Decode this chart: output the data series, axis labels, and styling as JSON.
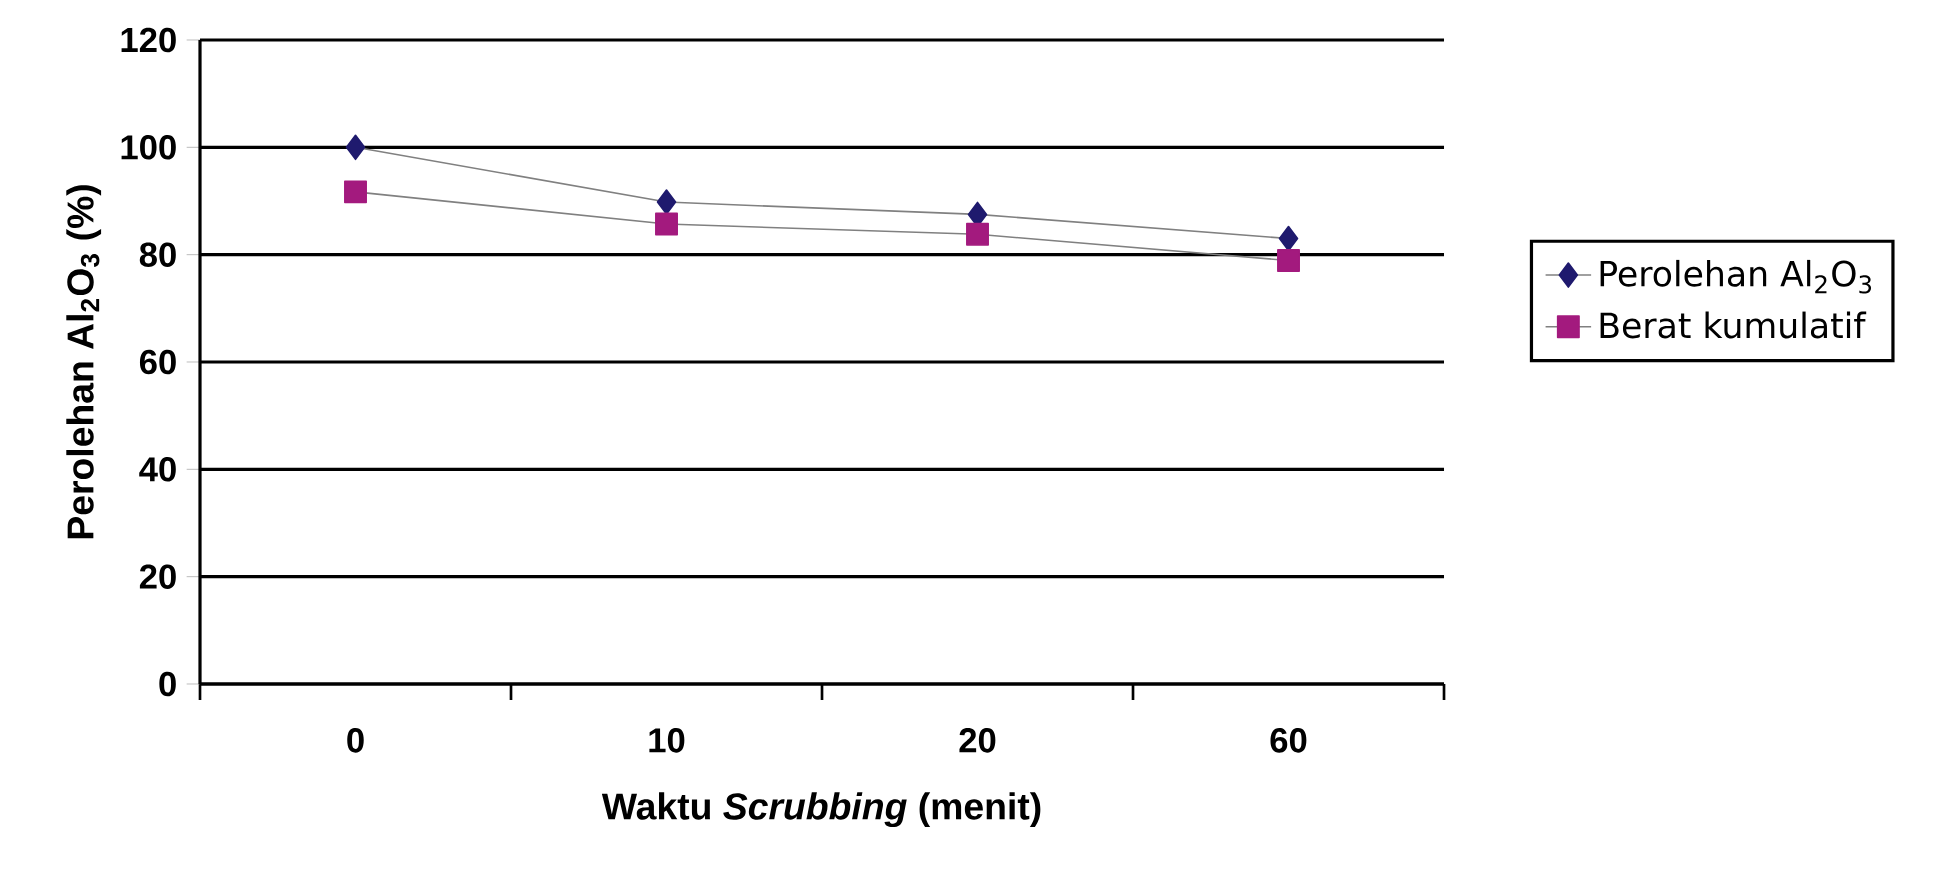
{
  "chart_data": {
    "type": "line",
    "xlabel": "Waktu *Scrubbing* (menit)",
    "ylabel": "Perolehan Al$_{2}$O$_{3}$ (%)",
    "categories": [
      "0",
      "10",
      "20",
      "60"
    ],
    "series": [
      {
        "name": "Perolehan Al$_{2}$O$_{3}$",
        "color": "#1f1a6e",
        "marker": "diamond",
        "values": [
          100,
          89.8,
          87.5,
          83
        ]
      },
      {
        "name": "Berat kumulatif",
        "color": "#a31a7e",
        "marker": "square",
        "values": [
          91.7,
          85.7,
          83.8,
          78.9
        ]
      }
    ],
    "ylim": [
      0,
      120
    ],
    "yticks": [
      0,
      20,
      40,
      60,
      80,
      100,
      120
    ],
    "grid": "y",
    "legend": "right"
  }
}
